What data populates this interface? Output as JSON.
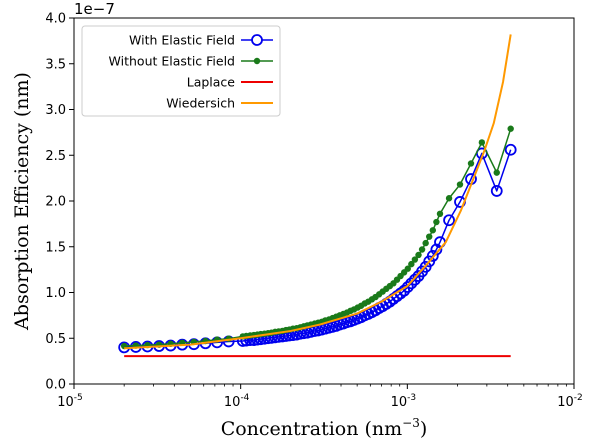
{
  "chart_data": {
    "type": "line",
    "xscale": "log",
    "xlim": [
      1e-05,
      0.01
    ],
    "ylim": [
      0,
      4e-07
    ],
    "y_offset_text": "1e−7",
    "xticks": [
      {
        "value": 1e-05,
        "base": "10",
        "exp": "-5"
      },
      {
        "value": 0.0001,
        "base": "10",
        "exp": "-4"
      },
      {
        "value": 0.001,
        "base": "10",
        "exp": "-3"
      },
      {
        "value": 0.01,
        "base": "10",
        "exp": "-2"
      }
    ],
    "yticks": [
      {
        "value": 0,
        "label": "0.0"
      },
      {
        "value": 5e-08,
        "label": "0.5"
      },
      {
        "value": 1e-07,
        "label": "1.0"
      },
      {
        "value": 1.5e-07,
        "label": "1.5"
      },
      {
        "value": 2e-07,
        "label": "2.0"
      },
      {
        "value": 2.5e-07,
        "label": "2.5"
      },
      {
        "value": 3e-07,
        "label": "3.0"
      },
      {
        "value": 3.5e-07,
        "label": "3.5"
      },
      {
        "value": 4e-07,
        "label": "4.0"
      }
    ],
    "xlabel_main": "Concentration (nm",
    "xlabel_exp": "−3",
    "xlabel_close": ")",
    "ylabel": "Absorption Efficiency (nm)",
    "legend_position": "upper-left",
    "series": [
      {
        "name": "With Elastic Field",
        "color": "#0000ee",
        "marker": "open-circle",
        "x": [
          2e-05,
          2.35e-05,
          2.76e-05,
          3.24e-05,
          3.8e-05,
          4.46e-05,
          5.24e-05,
          6.15e-05,
          7.22e-05,
          8.47e-05,
          0.000103,
          0.000108,
          0.000114,
          0.00012,
          0.000126,
          0.000132,
          0.000139,
          0.000146,
          0.000153,
          0.000161,
          0.000169,
          0.000178,
          0.000187,
          0.000196,
          0.000206,
          0.000217,
          0.000228,
          0.000239,
          0.000251,
          0.000264,
          0.000278,
          0.000292,
          0.000307,
          0.000322,
          0.000339,
          0.000356,
          0.000374,
          0.000393,
          0.000413,
          0.000434,
          0.000456,
          0.000479,
          0.000503,
          0.000528,
          0.000555,
          0.000583,
          0.000613,
          0.000644,
          0.000677,
          0.000711,
          0.000747,
          0.000785,
          0.000825,
          0.000867,
          0.000911,
          0.000957,
          0.001006,
          0.001057,
          0.00111,
          0.001167,
          0.001226,
          0.001288,
          0.001353,
          0.001422,
          0.001494,
          0.00157,
          0.00178,
          0.00207,
          0.00241,
          0.0028,
          0.00344,
          0.00417
        ],
        "y": [
          4e-08,
          4.05e-08,
          4.1e-08,
          4.15e-08,
          4.2e-08,
          4.3e-08,
          4.35e-08,
          4.45e-08,
          4.55e-08,
          4.65e-08,
          4.7e-08,
          4.75e-08,
          4.8e-08,
          4.8e-08,
          4.85e-08,
          4.9e-08,
          4.95e-08,
          5e-08,
          5.05e-08,
          5.1e-08,
          5.15e-08,
          5.2e-08,
          5.25e-08,
          5.3e-08,
          5.35e-08,
          5.4e-08,
          5.5e-08,
          5.55e-08,
          5.6e-08,
          5.7e-08,
          5.8e-08,
          5.85e-08,
          5.95e-08,
          6.05e-08,
          6.15e-08,
          6.25e-08,
          6.35e-08,
          6.5e-08,
          6.6e-08,
          6.75e-08,
          6.85e-08,
          7e-08,
          7.15e-08,
          7.3e-08,
          7.5e-08,
          7.65e-08,
          7.85e-08,
          8.05e-08,
          8.3e-08,
          8.5e-08,
          8.75e-08,
          9e-08,
          9.3e-08,
          9.6e-08,
          9.9e-08,
          1.02e-07,
          1.06e-07,
          1.1e-07,
          1.14e-07,
          1.18e-07,
          1.23e-07,
          1.28e-07,
          1.34e-07,
          1.4e-07,
          1.47e-07,
          1.55e-07,
          1.79e-07,
          1.99e-07,
          2.24e-07,
          2.52e-07,
          2.11e-07,
          2.56e-07
        ]
      },
      {
        "name": "Without Elastic Field",
        "color": "#1a7a1a",
        "marker": "filled-circle",
        "x": [
          2e-05,
          2.35e-05,
          2.76e-05,
          3.24e-05,
          3.8e-05,
          4.46e-05,
          5.24e-05,
          6.15e-05,
          7.22e-05,
          8.47e-05,
          0.000103,
          0.000108,
          0.000114,
          0.00012,
          0.000126,
          0.000132,
          0.000139,
          0.000146,
          0.000153,
          0.000161,
          0.000169,
          0.000178,
          0.000187,
          0.000196,
          0.000206,
          0.000217,
          0.000228,
          0.000239,
          0.000251,
          0.000264,
          0.000278,
          0.000292,
          0.000307,
          0.000322,
          0.000339,
          0.000356,
          0.000374,
          0.000393,
          0.000413,
          0.000434,
          0.000456,
          0.000479,
          0.000503,
          0.000528,
          0.000555,
          0.000583,
          0.000613,
          0.000644,
          0.000677,
          0.000711,
          0.000747,
          0.000785,
          0.000825,
          0.000867,
          0.000911,
          0.000957,
          0.001006,
          0.001057,
          0.00111,
          0.001167,
          0.001226,
          0.001288,
          0.001353,
          0.001422,
          0.001494,
          0.00157,
          0.00178,
          0.00207,
          0.00241,
          0.0028,
          0.00344,
          0.00417
        ],
        "y": [
          4.15e-08,
          4.2e-08,
          4.25e-08,
          4.3e-08,
          4.4e-08,
          4.5e-08,
          4.6e-08,
          4.7e-08,
          4.85e-08,
          4.95e-08,
          5.2e-08,
          5.25e-08,
          5.3e-08,
          5.35e-08,
          5.4e-08,
          5.45e-08,
          5.5e-08,
          5.55e-08,
          5.6e-08,
          5.7e-08,
          5.75e-08,
          5.8e-08,
          5.9e-08,
          5.95e-08,
          6.05e-08,
          6.1e-08,
          6.2e-08,
          6.3e-08,
          6.4e-08,
          6.5e-08,
          6.6e-08,
          6.7e-08,
          6.8e-08,
          6.95e-08,
          7.05e-08,
          7.2e-08,
          7.35e-08,
          7.5e-08,
          7.65e-08,
          7.8e-08,
          8e-08,
          8.15e-08,
          8.35e-08,
          8.55e-08,
          8.8e-08,
          9e-08,
          9.25e-08,
          9.5e-08,
          9.8e-08,
          1.01e-07,
          1.04e-07,
          1.07e-07,
          1.1e-07,
          1.14e-07,
          1.18e-07,
          1.22e-07,
          1.26e-07,
          1.31e-07,
          1.36e-07,
          1.41e-07,
          1.47e-07,
          1.54e-07,
          1.61e-07,
          1.68e-07,
          1.77e-07,
          1.86e-07,
          2.03e-07,
          2.18e-07,
          2.41e-07,
          2.64e-07,
          2.31e-07,
          2.79e-07
        ]
      },
      {
        "name": "Laplace",
        "color": "#ee0000",
        "marker": "none",
        "x": [
          2e-05,
          0.00417
        ],
        "y": [
          3.05e-08,
          3.05e-08
        ]
      },
      {
        "name": "Wiedersich",
        "color": "#ff9900",
        "marker": "none",
        "x": [
          2e-05,
          5e-05,
          0.0001,
          0.0002,
          0.0003,
          0.0005,
          0.0007,
          0.001,
          0.0013,
          0.0017,
          0.0021,
          0.0025,
          0.0029,
          0.0033,
          0.00375,
          0.00417
        ],
        "y": [
          3.9e-08,
          4.3e-08,
          5e-08,
          5.8e-08,
          6.5e-08,
          7.7e-08,
          9e-08,
          1.07e-07,
          1.3e-07,
          1.55e-07,
          1.9e-07,
          2.25e-07,
          2.55e-07,
          2.85e-07,
          3.3e-07,
          3.82e-07
        ]
      }
    ]
  }
}
